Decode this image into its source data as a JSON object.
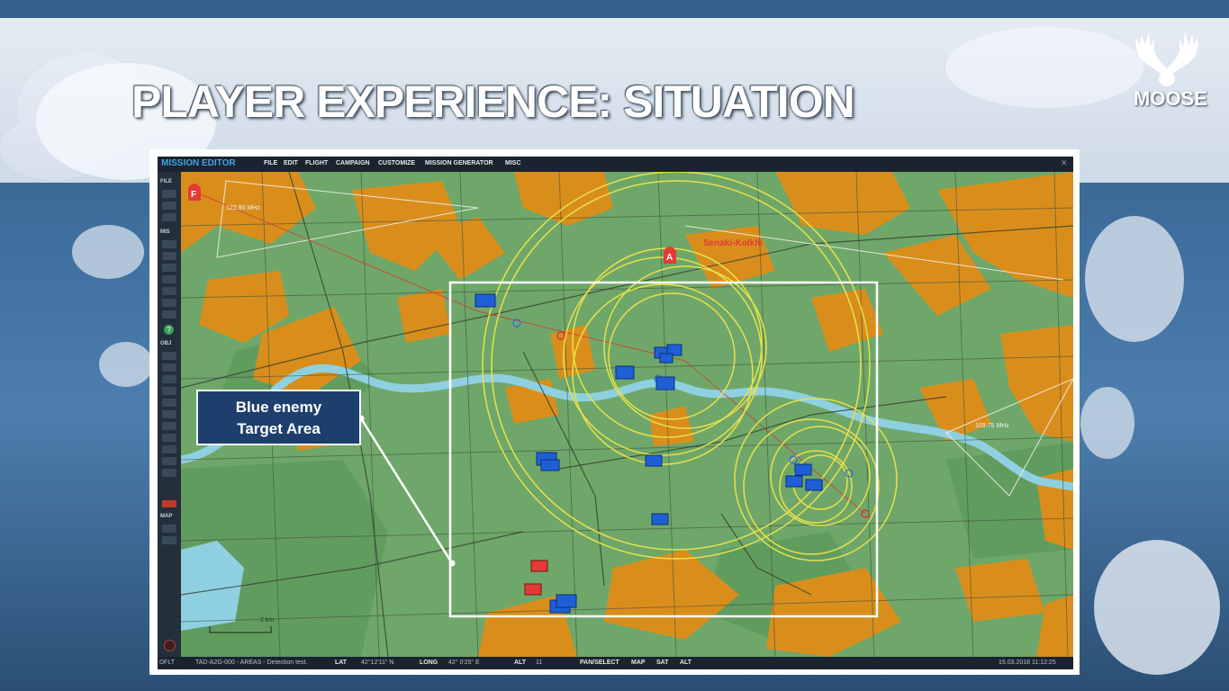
{
  "slide": {
    "title": "PLAYER EXPERIENCE: SITUATION",
    "logo_text": "MOOSE",
    "logo_icon": "moose-antlers-icon"
  },
  "editor": {
    "app_title": "MISSION EDITOR",
    "menu": [
      "FILE",
      "EDIT",
      "FLIGHT",
      "CAMPAIGN",
      "CUSTOMIZE",
      "MISSION GENERATOR",
      "MISC"
    ],
    "close_icon": "close-icon",
    "toolbar_sections": {
      "file": "FILE",
      "mis": "MIS",
      "obj": "OBJ",
      "map": "MAP"
    },
    "status": {
      "mode": "DFLT",
      "mission_name": "TAD-A2G-000 - AREAS - Detection test.",
      "lat_label": "LAT",
      "lat_value": "42°12'11\" N",
      "long_label": "LONG",
      "long_value": "42° 0'25\" E",
      "alt_label": "ALT",
      "alt_value": "11",
      "pan_select": "PAN/SELECT",
      "map": "MAP",
      "sat": "SAT",
      "alt_btn": "ALT",
      "datetime": "15.03.2018 11:12:25"
    },
    "map_labels": {
      "airfield": "Senaki-Kolkhi",
      "freq_top_left": "122.90 MHz",
      "freq_right": "109.75 MHz",
      "scale": "2 km",
      "marker_a": "A",
      "marker_f": "F"
    }
  },
  "callout": {
    "line1": "Blue enemy",
    "line2": "Target Area"
  },
  "colors": {
    "map_green": "#6fa76a",
    "urban_orange": "#d98e1c",
    "river": "#8fd0e0",
    "blue_unit": "#1f5fd6",
    "red_unit": "#e23b35",
    "detection_ring": "#e8e14a",
    "callout_bg": "#1e3f6d",
    "editor_accent": "#3fa6e6"
  }
}
